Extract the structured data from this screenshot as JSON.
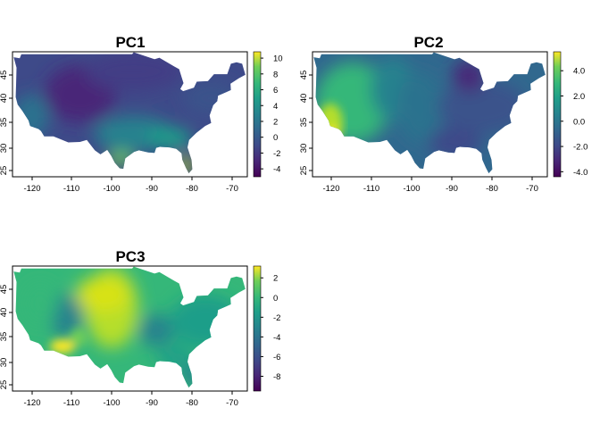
{
  "chart_data": [
    {
      "type": "heatmap",
      "title": "PC1",
      "xlabel": "",
      "ylabel": "",
      "x_ticks": [
        -120,
        -110,
        -100,
        -90,
        -80,
        -70
      ],
      "y_ticks": [
        25,
        30,
        35,
        40,
        45
      ],
      "xlim": [
        -125,
        -66.5
      ],
      "ylim": [
        24.4,
        49.5
      ],
      "colorbar": {
        "min": -5.0,
        "max": 10.8,
        "ticks": [
          "10",
          "8",
          "6",
          "4",
          "2",
          "0",
          "-2",
          "-4"
        ],
        "tick_values": [
          10,
          8,
          6,
          4,
          2,
          0,
          -2,
          -4
        ]
      },
      "pattern": "north/mountain low, southeast Florida and Gulf coast high"
    },
    {
      "type": "heatmap",
      "title": "PC2",
      "xlabel": "",
      "ylabel": "",
      "x_ticks": [
        -120,
        -110,
        -100,
        -90,
        -80,
        -70
      ],
      "y_ticks": [
        25,
        30,
        35,
        40,
        45
      ],
      "xlim": [
        -125,
        -66.5
      ],
      "ylim": [
        24.4,
        49.5
      ],
      "colorbar": {
        "min": -4.4,
        "max": 5.5,
        "ticks": [
          "4.0",
          "2.0",
          "0.0",
          "-2.0",
          "-4.0"
        ],
        "tick_values": [
          4,
          2,
          0,
          -2,
          -4
        ]
      },
      "pattern": "west and California high, east and Great Lakes low"
    },
    {
      "type": "heatmap",
      "title": "PC3",
      "xlabel": "",
      "ylabel": "",
      "x_ticks": [
        -120,
        -110,
        -100,
        -90,
        -80,
        -70
      ],
      "y_ticks": [
        25,
        30,
        35,
        40,
        45
      ],
      "xlim": [
        -125,
        -66.5
      ],
      "ylim": [
        24.4,
        49.5
      ],
      "colorbar": {
        "min": -9.5,
        "max": 3.2,
        "ticks": [
          "2",
          "0",
          "-2",
          "-4",
          "-6",
          "-8"
        ],
        "tick_values": [
          2,
          0,
          -2,
          -4,
          -6,
          -8
        ]
      },
      "pattern": "Great Plains and desert southwest high, mountains and coast lower"
    }
  ]
}
